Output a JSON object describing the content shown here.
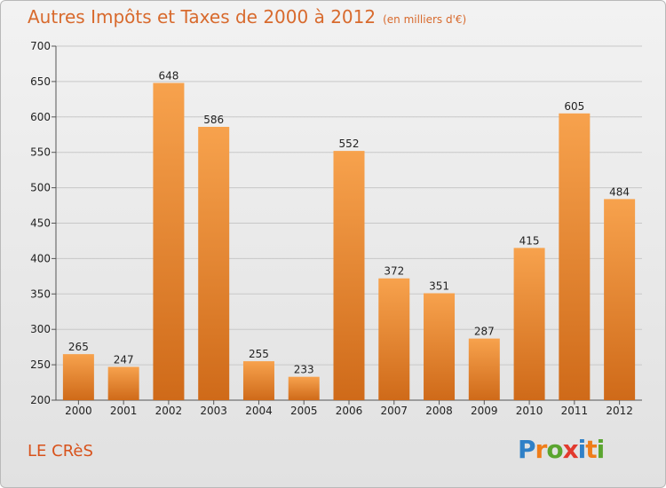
{
  "title": "Autres Impôts et Taxes de 2000 à 2012",
  "title_unit": "(en milliers d'€)",
  "commune": "LE CRèS",
  "logo": {
    "letters": [
      "P",
      "r",
      "o",
      "x",
      "i",
      "t",
      "i"
    ],
    "colors": [
      "#2f80c7",
      "#ef7d1a",
      "#5aa52f",
      "#e23a2e",
      "#2f80c7",
      "#ef7d1a",
      "#5aa52f"
    ]
  },
  "colors": {
    "bar_top": "#f7a24d",
    "bar_bottom": "#cf6a19",
    "title": "#d86a2d",
    "commune": "#d8521b"
  },
  "chart_data": {
    "type": "bar",
    "categories": [
      "2000",
      "2001",
      "2002",
      "2003",
      "2004",
      "2005",
      "2006",
      "2007",
      "2008",
      "2009",
      "2010",
      "2011",
      "2012"
    ],
    "values": [
      265,
      247,
      648,
      586,
      255,
      233,
      552,
      372,
      351,
      287,
      415,
      605,
      484
    ],
    "ylim": [
      200,
      700
    ],
    "yticks": [
      200,
      250,
      300,
      350,
      400,
      450,
      500,
      550,
      600,
      650,
      700
    ],
    "grid": true,
    "xlabel": "",
    "ylabel": ""
  }
}
